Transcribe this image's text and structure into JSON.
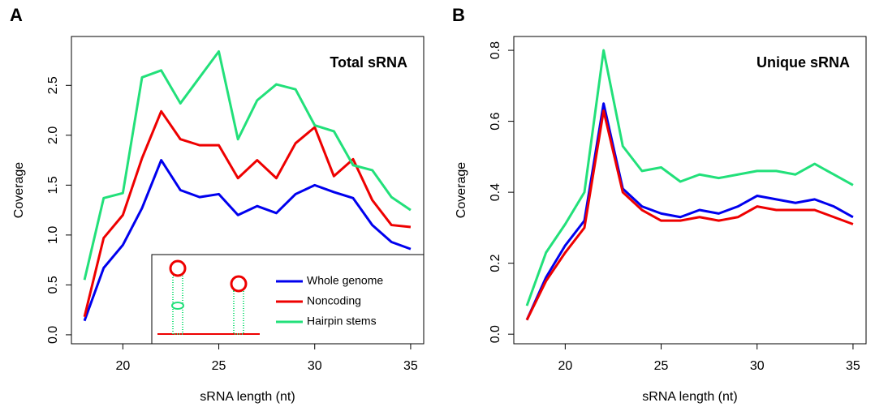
{
  "chart_data": [
    {
      "type": "line",
      "panel": "A",
      "title": "Total sRNA",
      "xlabel": "sRNA length (nt)",
      "ylabel": "Coverage",
      "x": [
        18,
        19,
        20,
        21,
        22,
        23,
        24,
        25,
        26,
        27,
        28,
        29,
        30,
        31,
        32,
        33,
        34,
        35
      ],
      "series": [
        {
          "name": "Whole genome",
          "color": "#0000ee",
          "values": [
            0.14,
            0.67,
            0.9,
            1.27,
            1.75,
            1.45,
            1.38,
            1.41,
            1.2,
            1.29,
            1.22,
            1.41,
            1.5,
            1.43,
            1.37,
            1.1,
            0.93,
            0.86
          ]
        },
        {
          "name": "Noncoding",
          "color": "#ee0000",
          "values": [
            0.18,
            0.97,
            1.2,
            1.77,
            2.24,
            1.96,
            1.9,
            1.9,
            1.57,
            1.75,
            1.57,
            1.92,
            2.08,
            1.59,
            1.76,
            1.35,
            1.1,
            1.08
          ]
        },
        {
          "name": "Hairpin stems",
          "color": "#22e07a",
          "values": [
            0.55,
            1.37,
            1.42,
            2.58,
            2.65,
            2.32,
            2.58,
            2.84,
            1.96,
            2.35,
            2.51,
            2.46,
            2.1,
            2.04,
            1.7,
            1.65,
            1.38,
            1.25
          ]
        }
      ],
      "xlim": [
        17.32,
        35.68
      ],
      "xticks": [
        20,
        25,
        30,
        35
      ],
      "ylim": [
        -0.09,
        2.99
      ],
      "yticks": [
        {
          "value": 0,
          "label": "0.0"
        },
        0.5,
        {
          "value": 1,
          "label": "1.0"
        },
        1.5,
        {
          "value": 2,
          "label": "2.0"
        },
        2.5
      ],
      "legend": "bottom-right"
    },
    {
      "type": "line",
      "panel": "B",
      "title": "Unique sRNA",
      "xlabel": "sRNA length (nt)",
      "ylabel": "Coverage",
      "x": [
        18,
        19,
        20,
        21,
        22,
        23,
        24,
        25,
        26,
        27,
        28,
        29,
        30,
        31,
        32,
        33,
        34,
        35
      ],
      "series": [
        {
          "color": "#22e07a",
          "values": [
            0.08,
            0.23,
            0.31,
            0.4,
            0.8,
            0.53,
            0.46,
            0.47,
            0.43,
            0.45,
            0.44,
            0.45,
            0.46,
            0.46,
            0.45,
            0.48,
            0.45,
            0.42
          ]
        },
        {
          "color": "#0000ee",
          "values": [
            0.04,
            0.16,
            0.25,
            0.32,
            0.65,
            0.41,
            0.36,
            0.34,
            0.33,
            0.35,
            0.34,
            0.36,
            0.39,
            0.38,
            0.37,
            0.38,
            0.36,
            0.33
          ]
        },
        {
          "color": "#ee0000",
          "values": [
            0.04,
            0.15,
            0.23,
            0.3,
            0.63,
            0.4,
            0.35,
            0.32,
            0.32,
            0.33,
            0.32,
            0.33,
            0.36,
            0.35,
            0.35,
            0.35,
            0.33,
            0.31
          ]
        }
      ],
      "xlim": [
        17.32,
        35.68
      ],
      "xticks": [
        20,
        25,
        30,
        35
      ],
      "ylim": [
        -0.027,
        0.839
      ],
      "yticks": [
        {
          "value": 0,
          "label": "0.0"
        },
        0.2,
        0.4,
        0.6,
        0.8
      ]
    }
  ]
}
